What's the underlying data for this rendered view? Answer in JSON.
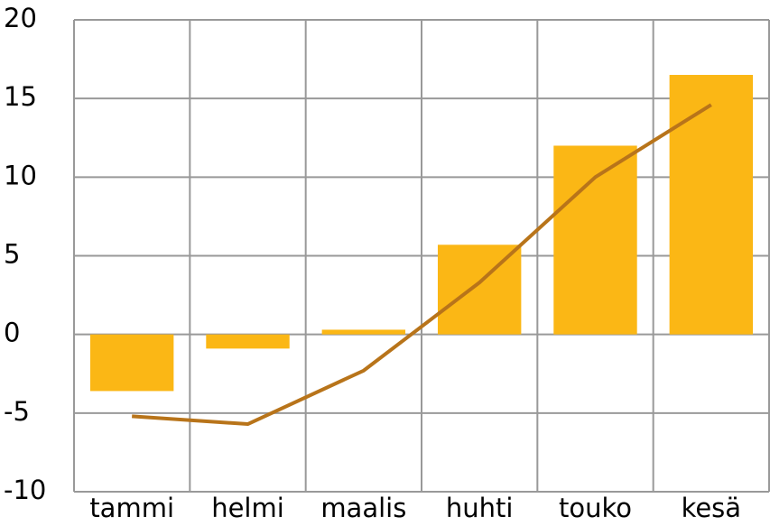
{
  "chart_data": {
    "type": "bar",
    "categories": [
      "tammi",
      "helmi",
      "maalis",
      "huhti",
      "touko",
      "kesä"
    ],
    "series": [
      {
        "type": "bar",
        "color": "#fbb715",
        "values": [
          -3.6,
          -0.9,
          0.3,
          5.7,
          12.0,
          16.5
        ]
      },
      {
        "type": "line",
        "color": "#b8741a",
        "values": [
          -5.2,
          -5.7,
          -2.3,
          3.3,
          10.0,
          14.6
        ]
      }
    ],
    "ylim": [
      -10,
      20
    ],
    "yticks": [
      -10,
      -5,
      0,
      5,
      10,
      15,
      20
    ],
    "grid": true
  }
}
